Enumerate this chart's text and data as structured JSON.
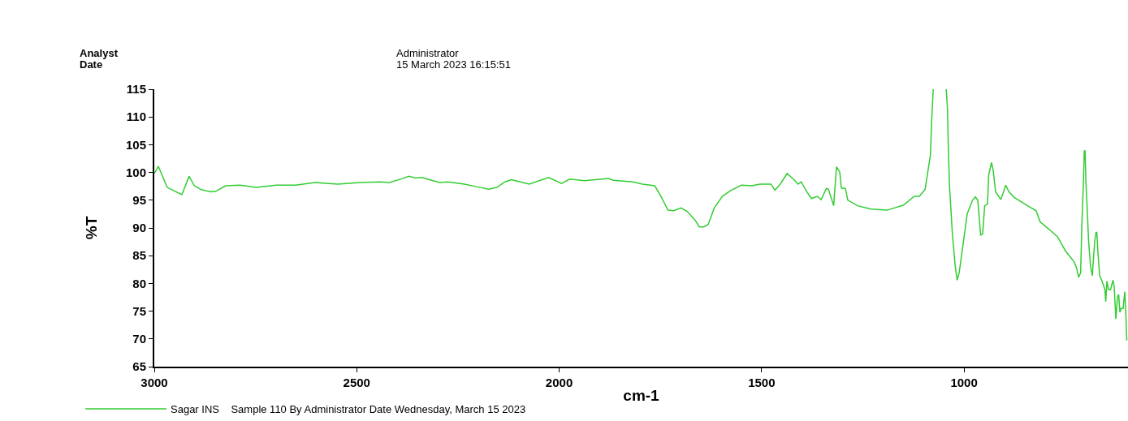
{
  "chart_data": {
    "type": "line",
    "xlabel": "cm-1",
    "ylabel": "%T",
    "annotations": [
      "Analyst",
      "Date",
      "Administrator",
      "15 March 2023 16:15:51"
    ],
    "x": [
      3000,
      2990,
      2968,
      2932,
      2914,
      2901,
      2884,
      2860,
      2848,
      2824,
      2788,
      2748,
      2699,
      2651,
      2603,
      2547,
      2491,
      2443,
      2419,
      2387,
      2371,
      2355,
      2339,
      2315,
      2295,
      2275,
      2234,
      2202,
      2174,
      2154,
      2134,
      2118,
      2074,
      2026,
      1994,
      1974,
      1938,
      1878,
      1866,
      1818,
      1794,
      1764,
      1751,
      1731,
      1717,
      1699,
      1684,
      1664,
      1654,
      1643,
      1632,
      1617,
      1597,
      1577,
      1550,
      1524,
      1504,
      1477,
      1467,
      1454,
      1437,
      1420,
      1410,
      1402,
      1390,
      1377,
      1363,
      1353,
      1340,
      1335,
      1322,
      1315,
      1307,
      1303,
      1293,
      1287,
      1263,
      1230,
      1190,
      1150,
      1123,
      1110,
      1096,
      1090,
      1083,
      1080,
      1076,
      1060,
      1044,
      1041,
      1039,
      1036,
      1029,
      1022,
      1017,
      1012,
      1002,
      992,
      979,
      972,
      966,
      959,
      954,
      949,
      942,
      939,
      932,
      928,
      922,
      909,
      897,
      889,
      876,
      843,
      822,
      812,
      789,
      769,
      749,
      729,
      722,
      717,
      712,
      709,
      705,
      703,
      701,
      699,
      695,
      692,
      687,
      683,
      680,
      677,
      674,
      672,
      669,
      665,
      659,
      652,
      650,
      647,
      643,
      638,
      632,
      629,
      625,
      621,
      618,
      615,
      612,
      607,
      603,
      600,
      598
    ],
    "series": [
      {
        "name": "Sagar INS    Sample 110 By Administrator Date Wednesday, March 15 2023",
        "color": "#33cc33",
        "values": [
          99.8,
          101.1,
          97.3,
          96.0,
          99.3,
          97.6,
          96.9,
          96.5,
          96.6,
          97.6,
          97.7,
          97.3,
          97.7,
          97.7,
          98.2,
          97.9,
          98.2,
          98.3,
          98.2,
          98.9,
          99.3,
          99.0,
          99.1,
          98.6,
          98.2,
          98.3,
          97.9,
          97.4,
          97.0,
          97.3,
          98.3,
          98.7,
          97.9,
          99.1,
          98.0,
          98.8,
          98.5,
          98.9,
          98.6,
          98.3,
          97.9,
          97.6,
          96.0,
          93.2,
          93.1,
          93.6,
          93.0,
          91.4,
          90.2,
          90.2,
          90.6,
          93.6,
          95.7,
          96.7,
          97.7,
          97.6,
          97.9,
          97.9,
          96.8,
          97.9,
          99.8,
          98.7,
          97.9,
          98.3,
          96.7,
          95.3,
          95.7,
          95.1,
          97.1,
          97.0,
          94.0,
          101.0,
          100.1,
          97.2,
          97.1,
          95.0,
          94.0,
          93.4,
          93.2,
          94.1,
          95.7,
          95.7,
          97.0,
          99.9,
          103.1,
          109.2,
          115,
          null,
          115,
          111.6,
          105.2,
          97.7,
          89.2,
          83.3,
          80.6,
          81.9,
          87.2,
          92.6,
          95.0,
          95.6,
          95.0,
          88.7,
          88.9,
          94.0,
          94.3,
          99.6,
          101.8,
          100.4,
          96.5,
          95.1,
          97.7,
          96.5,
          95.5,
          94.0,
          93.1,
          91.1,
          89.7,
          88.4,
          85.8,
          84.0,
          82.8,
          81.1,
          81.9,
          90.6,
          98.4,
          103.9,
          103.9,
          98.4,
          92.1,
          87.2,
          82.8,
          81.4,
          84.8,
          87.7,
          89.2,
          89.2,
          85.3,
          81.4,
          80.4,
          78.9,
          76.7,
          80.4,
          78.9,
          78.9,
          80.6,
          79.4,
          73.6,
          77.5,
          78.0,
          74.8,
          75.5,
          75.5,
          78.5,
          74.1,
          69.7
        ]
      }
    ],
    "xlim": [
      3000,
      595
    ],
    "xticks": [
      3000,
      2500,
      2000,
      1500,
      1000
    ],
    "ylim": [
      65,
      115
    ],
    "yticks": [
      65,
      70,
      75,
      80,
      85,
      90,
      95,
      100,
      105,
      110,
      115
    ],
    "legend": "bottom left",
    "marker": "none",
    "line_style": "solid"
  }
}
